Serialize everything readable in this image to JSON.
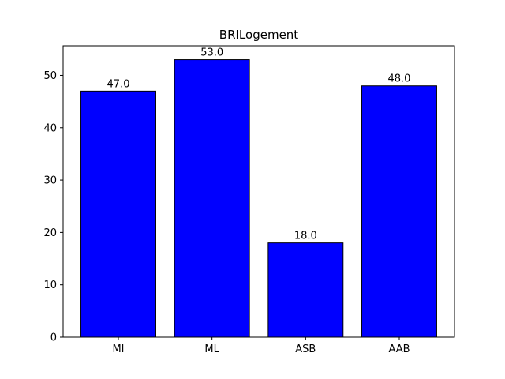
{
  "chart_data": {
    "type": "bar",
    "title": "BRILogement",
    "categories": [
      "MI",
      "ML",
      "ASB",
      "AAB"
    ],
    "values": [
      47.0,
      53.0,
      18.0,
      48.0
    ],
    "value_labels": [
      "47.0",
      "53.0",
      "18.0",
      "48.0"
    ],
    "xlabel": "",
    "ylabel": "",
    "ylim": [
      0,
      55.65
    ],
    "yticks": [
      0,
      10,
      20,
      30,
      40,
      50
    ],
    "grid": false,
    "bar_color": "#0000ff",
    "bar_edge_color": "#000000"
  }
}
